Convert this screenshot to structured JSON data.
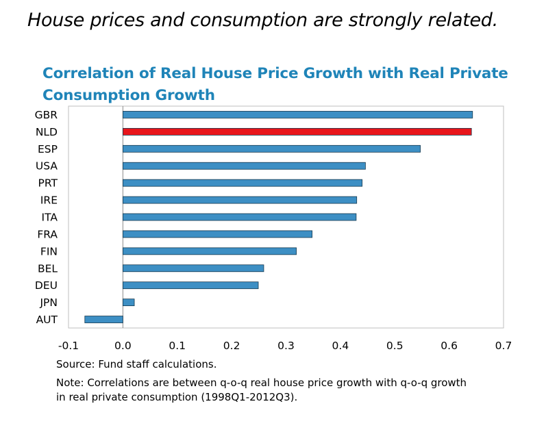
{
  "headline": "House prices and consumption are strongly related.",
  "chart_data": {
    "type": "bar",
    "orientation": "horizontal",
    "title": "Correlation of Real House Price Growth with Real Private Consumption Growth",
    "title_lines": [
      "Correlation of Real House Price Growth with Real Private",
      "Consumption Growth"
    ],
    "categories": [
      "GBR",
      "NLD",
      "ESP",
      "USA",
      "PRT",
      "IRE",
      "ITA",
      "FRA",
      "FIN",
      "BEL",
      "DEU",
      "JPN",
      "AUT"
    ],
    "values": [
      0.643,
      0.641,
      0.547,
      0.446,
      0.44,
      0.43,
      0.429,
      0.348,
      0.319,
      0.259,
      0.249,
      0.021,
      -0.07
    ],
    "highlight": "NLD",
    "colors": {
      "bar": "#3d8fc4",
      "highlight": "#e8151b",
      "bar_border": "#16394f",
      "frame": "#bfbfbf"
    },
    "xlim": [
      -0.1,
      0.7
    ],
    "xticks": [
      "-0.1",
      "0.0",
      "0.1",
      "0.2",
      "0.3",
      "0.4",
      "0.5",
      "0.6",
      "0.7"
    ],
    "xlabel": "",
    "ylabel": "",
    "grid": false,
    "legend": "none"
  },
  "source": "Source: Fund staff calculations.",
  "note_lines": [
    "Note: Correlations are between q-o-q real house price growth with q-o-q growth",
    "in real private consumption (1998Q1-2012Q3)."
  ]
}
